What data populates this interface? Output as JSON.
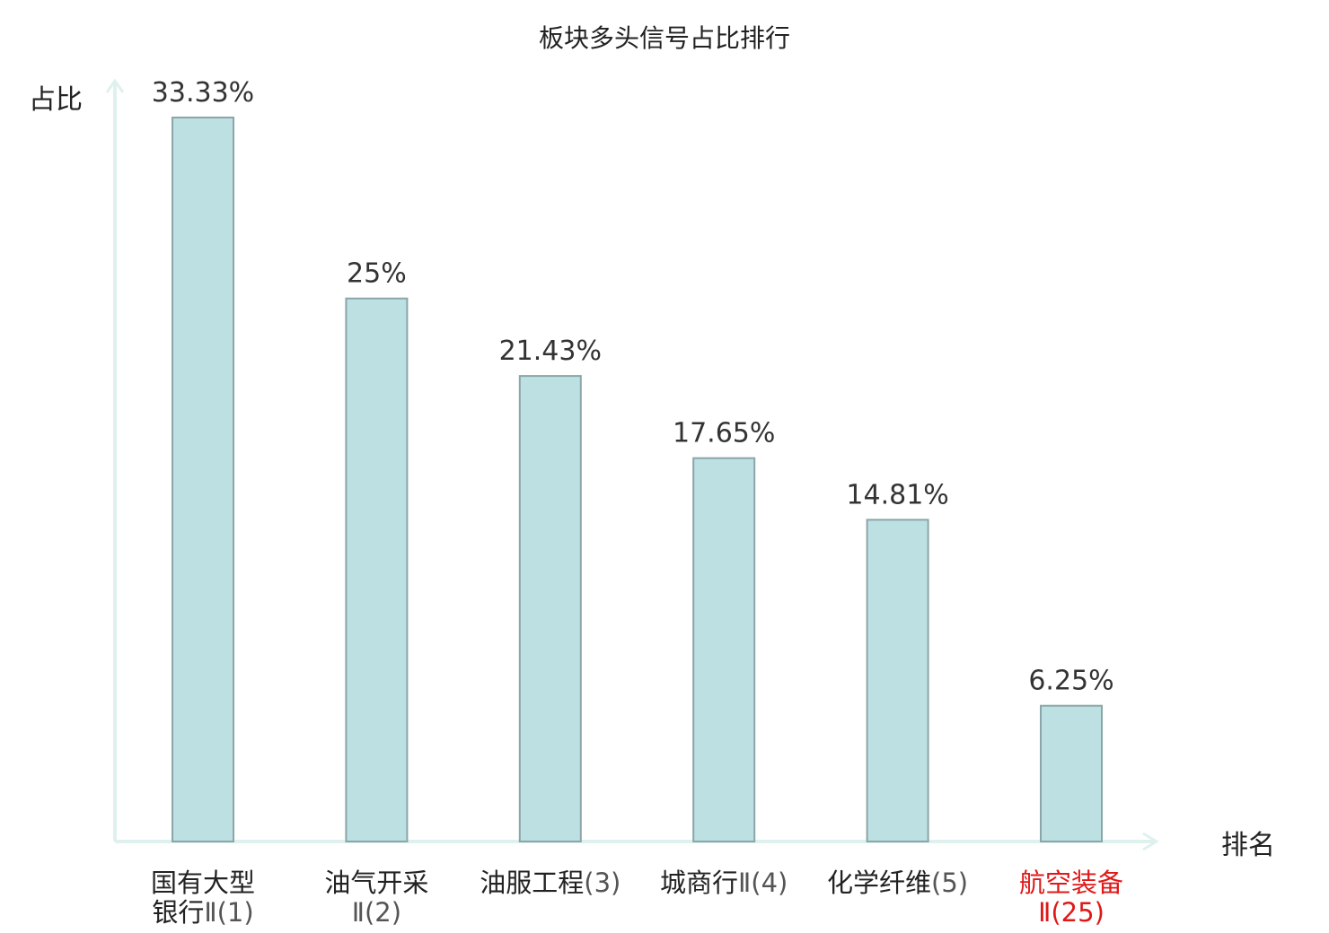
{
  "chart_data": {
    "type": "bar",
    "title": "板块多头信号占比排行",
    "ylabel": "占比",
    "xlabel": "排名",
    "ylim": [
      0,
      34.5
    ],
    "grid": false,
    "legend": "none",
    "categories": [
      {
        "name_lines": [
          "国有大型",
          "银行"
        ],
        "suffix": "Ⅱ(1)",
        "suffix_on_second_line": true,
        "highlight": false
      },
      {
        "name_lines": [
          "油气开采"
        ],
        "suffix": "Ⅱ(2)",
        "suffix_on_second_line": true,
        "highlight": false
      },
      {
        "name_lines": [
          "油服工程"
        ],
        "suffix": "(3)",
        "suffix_on_second_line": false,
        "highlight": false
      },
      {
        "name_lines": [
          "城商行"
        ],
        "suffix": "Ⅱ(4)",
        "suffix_on_second_line": false,
        "highlight": false
      },
      {
        "name_lines": [
          "化学纤维"
        ],
        "suffix": "(5)",
        "suffix_on_second_line": false,
        "highlight": false
      },
      {
        "name_lines": [
          "航空装备"
        ],
        "suffix": "Ⅱ(25)",
        "suffix_on_second_line": true,
        "highlight": true
      }
    ],
    "values": [
      33.33,
      25,
      21.43,
      17.65,
      14.81,
      6.25
    ],
    "data_labels": [
      "33.33%",
      "25%",
      "21.43%",
      "17.65%",
      "14.81%",
      "6.25%"
    ],
    "colors": {
      "bar_fill": "#bde0e3",
      "bar_stroke": "#8aa6a8",
      "axis": "#dff1ef",
      "highlight": "#e01818"
    }
  }
}
